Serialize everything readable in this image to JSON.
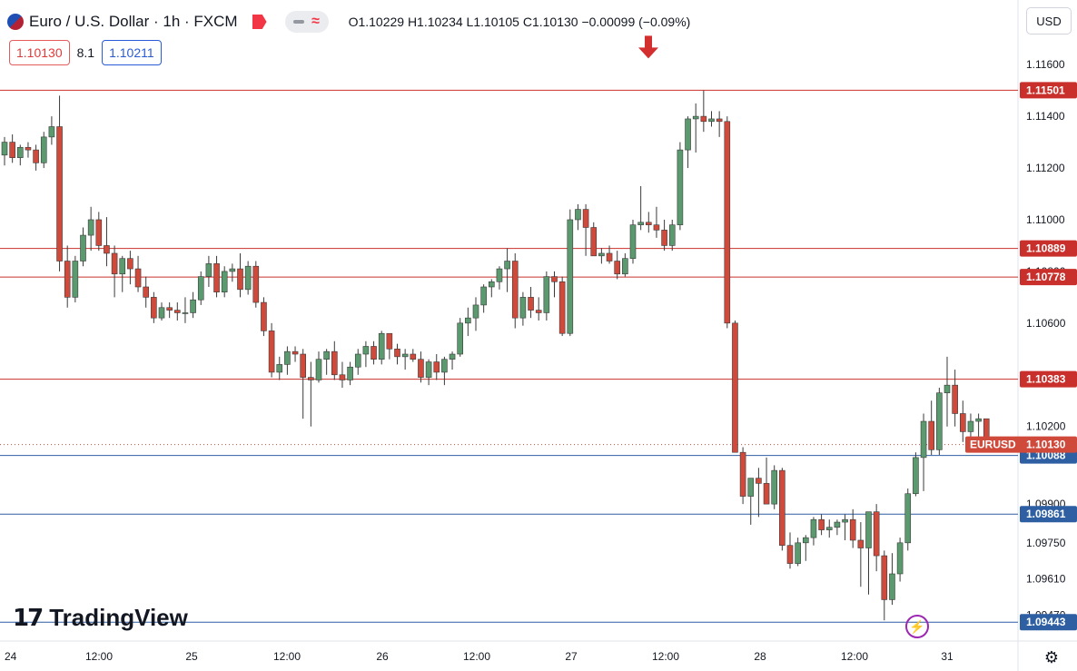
{
  "header": {
    "title": "Euro / U.S. Dollar · 1h · FXCM",
    "ohlc": "O1.10229 H1.10234 L1.10105 C1.10130 −0.00099 (−0.09%)"
  },
  "quote": {
    "sell": "1.10130",
    "spread": "8.1",
    "buy": "1.10211"
  },
  "currency": "USD",
  "logo": "TradingView",
  "colors": {
    "up": "#5b9a6f",
    "down": "#d04a3c",
    "red_line": "#c9302c",
    "blue_line": "#2e5fa3",
    "arrow": "#d32f2f"
  },
  "chart_data": {
    "type": "candlestick",
    "symbol": "EURUSD",
    "x_ticks": [
      "24",
      "12:00",
      "25",
      "12:00",
      "26",
      "12:00",
      "27",
      "12:00",
      "28",
      "12:00",
      "31"
    ],
    "y_ticks": [
      "1.11600",
      "1.11400",
      "1.11200",
      "1.11000",
      "1.10800",
      "1.10600",
      "1.10200",
      "1.09900",
      "1.09750",
      "1.09610",
      "1.09470"
    ],
    "ylim": [
      1.0937,
      1.1185
    ],
    "last_price": {
      "label": "EURUSD",
      "value": "1.10130"
    },
    "horizontal_lines": [
      {
        "value": "1.11501",
        "style": "red"
      },
      {
        "value": "1.10889",
        "style": "red"
      },
      {
        "value": "1.10778",
        "style": "red"
      },
      {
        "value": "1.10383",
        "style": "red"
      },
      {
        "value": "1.10088",
        "style": "blue"
      },
      {
        "value": "1.09861",
        "style": "blue"
      },
      {
        "value": "1.09443",
        "style": "blue"
      }
    ],
    "arrow_marker": {
      "direction": "down",
      "near_value": 1.1155
    },
    "candles": [
      {
        "o": 1.1125,
        "h": 1.1132,
        "l": 1.1121,
        "c": 1.113
      },
      {
        "o": 1.113,
        "h": 1.1133,
        "l": 1.1122,
        "c": 1.1124
      },
      {
        "o": 1.1124,
        "h": 1.1129,
        "l": 1.1121,
        "c": 1.1128
      },
      {
        "o": 1.1128,
        "h": 1.113,
        "l": 1.1124,
        "c": 1.1127
      },
      {
        "o": 1.1127,
        "h": 1.1129,
        "l": 1.1119,
        "c": 1.1122
      },
      {
        "o": 1.1122,
        "h": 1.1134,
        "l": 1.112,
        "c": 1.1132
      },
      {
        "o": 1.1132,
        "h": 1.114,
        "l": 1.1129,
        "c": 1.1136
      },
      {
        "o": 1.1136,
        "h": 1.1148,
        "l": 1.108,
        "c": 1.1084
      },
      {
        "o": 1.1084,
        "h": 1.109,
        "l": 1.1066,
        "c": 1.107
      },
      {
        "o": 1.107,
        "h": 1.1086,
        "l": 1.1068,
        "c": 1.1084
      },
      {
        "o": 1.1084,
        "h": 1.1097,
        "l": 1.1082,
        "c": 1.1094
      },
      {
        "o": 1.1094,
        "h": 1.1105,
        "l": 1.1088,
        "c": 1.11
      },
      {
        "o": 1.11,
        "h": 1.1103,
        "l": 1.1088,
        "c": 1.109
      },
      {
        "o": 1.109,
        "h": 1.1101,
        "l": 1.1082,
        "c": 1.1087
      },
      {
        "o": 1.1087,
        "h": 1.109,
        "l": 1.107,
        "c": 1.1079
      },
      {
        "o": 1.1079,
        "h": 1.1086,
        "l": 1.1072,
        "c": 1.1085
      },
      {
        "o": 1.1085,
        "h": 1.1088,
        "l": 1.1075,
        "c": 1.1081
      },
      {
        "o": 1.1081,
        "h": 1.1086,
        "l": 1.1072,
        "c": 1.1074
      },
      {
        "o": 1.1074,
        "h": 1.1078,
        "l": 1.1066,
        "c": 1.107
      },
      {
        "o": 1.107,
        "h": 1.1072,
        "l": 1.106,
        "c": 1.1062
      },
      {
        "o": 1.1062,
        "h": 1.1068,
        "l": 1.1061,
        "c": 1.1066
      },
      {
        "o": 1.1066,
        "h": 1.1068,
        "l": 1.1062,
        "c": 1.1065
      },
      {
        "o": 1.1065,
        "h": 1.1068,
        "l": 1.1061,
        "c": 1.1064
      },
      {
        "o": 1.1064,
        "h": 1.107,
        "l": 1.106,
        "c": 1.1064
      },
      {
        "o": 1.1064,
        "h": 1.1072,
        "l": 1.1062,
        "c": 1.1069
      },
      {
        "o": 1.1069,
        "h": 1.108,
        "l": 1.1067,
        "c": 1.1078
      },
      {
        "o": 1.1078,
        "h": 1.1086,
        "l": 1.1074,
        "c": 1.1083
      },
      {
        "o": 1.1083,
        "h": 1.1086,
        "l": 1.107,
        "c": 1.1072
      },
      {
        "o": 1.1072,
        "h": 1.1082,
        "l": 1.107,
        "c": 1.108
      },
      {
        "o": 1.108,
        "h": 1.1083,
        "l": 1.1076,
        "c": 1.1081
      },
      {
        "o": 1.1081,
        "h": 1.1087,
        "l": 1.107,
        "c": 1.1073
      },
      {
        "o": 1.1073,
        "h": 1.1084,
        "l": 1.1071,
        "c": 1.1082
      },
      {
        "o": 1.1082,
        "h": 1.1084,
        "l": 1.1066,
        "c": 1.1068
      },
      {
        "o": 1.1068,
        "h": 1.107,
        "l": 1.1055,
        "c": 1.1057
      },
      {
        "o": 1.1057,
        "h": 1.106,
        "l": 1.1039,
        "c": 1.1041
      },
      {
        "o": 1.1041,
        "h": 1.1047,
        "l": 1.1038,
        "c": 1.1044
      },
      {
        "o": 1.1044,
        "h": 1.1051,
        "l": 1.104,
        "c": 1.1049
      },
      {
        "o": 1.1049,
        "h": 1.1051,
        "l": 1.1045,
        "c": 1.1048
      },
      {
        "o": 1.1048,
        "h": 1.105,
        "l": 1.1023,
        "c": 1.1039
      },
      {
        "o": 1.1039,
        "h": 1.1045,
        "l": 1.102,
        "c": 1.1038
      },
      {
        "o": 1.1038,
        "h": 1.1049,
        "l": 1.1037,
        "c": 1.1046
      },
      {
        "o": 1.1046,
        "h": 1.105,
        "l": 1.104,
        "c": 1.1049
      },
      {
        "o": 1.1049,
        "h": 1.1053,
        "l": 1.1038,
        "c": 1.104
      },
      {
        "o": 1.104,
        "h": 1.1045,
        "l": 1.1035,
        "c": 1.1038
      },
      {
        "o": 1.1038,
        "h": 1.1045,
        "l": 1.1036,
        "c": 1.1043
      },
      {
        "o": 1.1043,
        "h": 1.105,
        "l": 1.104,
        "c": 1.1048
      },
      {
        "o": 1.1048,
        "h": 1.1053,
        "l": 1.1043,
        "c": 1.1051
      },
      {
        "o": 1.1051,
        "h": 1.1053,
        "l": 1.1044,
        "c": 1.1046
      },
      {
        "o": 1.1046,
        "h": 1.1057,
        "l": 1.1044,
        "c": 1.1056
      },
      {
        "o": 1.1056,
        "h": 1.1056,
        "l": 1.1046,
        "c": 1.105
      },
      {
        "o": 1.105,
        "h": 1.1052,
        "l": 1.1044,
        "c": 1.1047
      },
      {
        "o": 1.1047,
        "h": 1.105,
        "l": 1.1042,
        "c": 1.1048
      },
      {
        "o": 1.1048,
        "h": 1.105,
        "l": 1.1045,
        "c": 1.1046
      },
      {
        "o": 1.1046,
        "h": 1.1049,
        "l": 1.1037,
        "c": 1.1039
      },
      {
        "o": 1.1039,
        "h": 1.1046,
        "l": 1.1036,
        "c": 1.1045
      },
      {
        "o": 1.1045,
        "h": 1.1048,
        "l": 1.1038,
        "c": 1.1041
      },
      {
        "o": 1.1041,
        "h": 1.1047,
        "l": 1.1036,
        "c": 1.1046
      },
      {
        "o": 1.1046,
        "h": 1.1049,
        "l": 1.1042,
        "c": 1.1048
      },
      {
        "o": 1.1048,
        "h": 1.1062,
        "l": 1.1047,
        "c": 1.106
      },
      {
        "o": 1.106,
        "h": 1.1066,
        "l": 1.1055,
        "c": 1.1062
      },
      {
        "o": 1.1062,
        "h": 1.107,
        "l": 1.1057,
        "c": 1.1067
      },
      {
        "o": 1.1067,
        "h": 1.1075,
        "l": 1.1064,
        "c": 1.1074
      },
      {
        "o": 1.1074,
        "h": 1.1077,
        "l": 1.107,
        "c": 1.1076
      },
      {
        "o": 1.1076,
        "h": 1.1082,
        "l": 1.1073,
        "c": 1.1081
      },
      {
        "o": 1.1081,
        "h": 1.1089,
        "l": 1.1072,
        "c": 1.1084
      },
      {
        "o": 1.1084,
        "h": 1.1087,
        "l": 1.1058,
        "c": 1.1062
      },
      {
        "o": 1.1062,
        "h": 1.1072,
        "l": 1.1059,
        "c": 1.107
      },
      {
        "o": 1.107,
        "h": 1.1074,
        "l": 1.1062,
        "c": 1.1065
      },
      {
        "o": 1.1065,
        "h": 1.107,
        "l": 1.1061,
        "c": 1.1064
      },
      {
        "o": 1.1064,
        "h": 1.108,
        "l": 1.1061,
        "c": 1.1078
      },
      {
        "o": 1.1078,
        "h": 1.108,
        "l": 1.107,
        "c": 1.1076
      },
      {
        "o": 1.1076,
        "h": 1.1078,
        "l": 1.1055,
        "c": 1.1056
      },
      {
        "o": 1.1056,
        "h": 1.1104,
        "l": 1.1055,
        "c": 1.11
      },
      {
        "o": 1.11,
        "h": 1.1106,
        "l": 1.1096,
        "c": 1.1104
      },
      {
        "o": 1.1104,
        "h": 1.1106,
        "l": 1.1086,
        "c": 1.1097
      },
      {
        "o": 1.1097,
        "h": 1.1099,
        "l": 1.1086,
        "c": 1.1086
      },
      {
        "o": 1.1086,
        "h": 1.1089,
        "l": 1.1083,
        "c": 1.1087
      },
      {
        "o": 1.1087,
        "h": 1.109,
        "l": 1.1083,
        "c": 1.1084
      },
      {
        "o": 1.1084,
        "h": 1.1088,
        "l": 1.1077,
        "c": 1.1079
      },
      {
        "o": 1.1079,
        "h": 1.1087,
        "l": 1.1078,
        "c": 1.1085
      },
      {
        "o": 1.1085,
        "h": 1.11,
        "l": 1.1083,
        "c": 1.1098
      },
      {
        "o": 1.1098,
        "h": 1.1113,
        "l": 1.1096,
        "c": 1.1099
      },
      {
        "o": 1.1099,
        "h": 1.1103,
        "l": 1.1095,
        "c": 1.1098
      },
      {
        "o": 1.1098,
        "h": 1.1105,
        "l": 1.1093,
        "c": 1.1096
      },
      {
        "o": 1.1096,
        "h": 1.11,
        "l": 1.1088,
        "c": 1.109
      },
      {
        "o": 1.109,
        "h": 1.11,
        "l": 1.1088,
        "c": 1.1098
      },
      {
        "o": 1.1098,
        "h": 1.113,
        "l": 1.1096,
        "c": 1.1127
      },
      {
        "o": 1.1127,
        "h": 1.114,
        "l": 1.112,
        "c": 1.1139
      },
      {
        "o": 1.1139,
        "h": 1.1145,
        "l": 1.1126,
        "c": 1.114
      },
      {
        "o": 1.114,
        "h": 1.115,
        "l": 1.1134,
        "c": 1.1138
      },
      {
        "o": 1.1138,
        "h": 1.1142,
        "l": 1.1136,
        "c": 1.1139
      },
      {
        "o": 1.1139,
        "h": 1.1142,
        "l": 1.1132,
        "c": 1.1138
      },
      {
        "o": 1.1138,
        "h": 1.114,
        "l": 1.1058,
        "c": 1.106
      },
      {
        "o": 1.106,
        "h": 1.1061,
        "l": 1.101,
        "c": 1.101
      },
      {
        "o": 1.101,
        "h": 1.1012,
        "l": 1.099,
        "c": 1.0993
      },
      {
        "o": 1.0993,
        "h": 1.0999,
        "l": 1.0982,
        "c": 1.1
      },
      {
        "o": 1.1,
        "h": 1.1004,
        "l": 1.0985,
        "c": 1.0998
      },
      {
        "o": 1.0998,
        "h": 1.1008,
        "l": 1.099,
        "c": 1.099
      },
      {
        "o": 1.099,
        "h": 1.1005,
        "l": 1.0988,
        "c": 1.1003
      },
      {
        "o": 1.1003,
        "h": 1.1004,
        "l": 1.0972,
        "c": 1.0974
      },
      {
        "o": 1.0974,
        "h": 1.0979,
        "l": 1.0965,
        "c": 1.0967
      },
      {
        "o": 1.0967,
        "h": 1.0977,
        "l": 1.0966,
        "c": 1.0975
      },
      {
        "o": 1.0975,
        "h": 1.0978,
        "l": 1.0968,
        "c": 1.0977
      },
      {
        "o": 1.0977,
        "h": 1.0985,
        "l": 1.0974,
        "c": 1.0984
      },
      {
        "o": 1.0984,
        "h": 1.0986,
        "l": 1.0978,
        "c": 1.098
      },
      {
        "o": 1.098,
        "h": 1.0984,
        "l": 1.0977,
        "c": 1.0981
      },
      {
        "o": 1.0981,
        "h": 1.0984,
        "l": 1.0978,
        "c": 1.0983
      },
      {
        "o": 1.0983,
        "h": 1.0986,
        "l": 1.0976,
        "c": 1.0984
      },
      {
        "o": 1.0984,
        "h": 1.0988,
        "l": 1.0973,
        "c": 1.0976
      },
      {
        "o": 1.0976,
        "h": 1.0983,
        "l": 1.0958,
        "c": 1.0973
      },
      {
        "o": 1.0973,
        "h": 1.0987,
        "l": 1.0955,
        "c": 1.0987
      },
      {
        "o": 1.0987,
        "h": 1.099,
        "l": 1.0964,
        "c": 1.097
      },
      {
        "o": 1.097,
        "h": 1.0972,
        "l": 1.0945,
        "c": 1.0953
      },
      {
        "o": 1.0953,
        "h": 1.0971,
        "l": 1.0951,
        "c": 1.0963
      },
      {
        "o": 1.0963,
        "h": 1.0977,
        "l": 1.096,
        "c": 1.0975
      },
      {
        "o": 1.0975,
        "h": 1.0996,
        "l": 1.0972,
        "c": 1.0994
      },
      {
        "o": 1.0994,
        "h": 1.101,
        "l": 1.0993,
        "c": 1.1008
      },
      {
        "o": 1.1008,
        "h": 1.1025,
        "l": 1.0995,
        "c": 1.1022
      },
      {
        "o": 1.1022,
        "h": 1.103,
        "l": 1.1009,
        "c": 1.1011
      },
      {
        "o": 1.1011,
        "h": 1.1035,
        "l": 1.1009,
        "c": 1.1033
      },
      {
        "o": 1.1033,
        "h": 1.1047,
        "l": 1.102,
        "c": 1.1036
      },
      {
        "o": 1.1036,
        "h": 1.1042,
        "l": 1.102,
        "c": 1.1025
      },
      {
        "o": 1.1025,
        "h": 1.103,
        "l": 1.1014,
        "c": 1.1018
      },
      {
        "o": 1.1018,
        "h": 1.1025,
        "l": 1.1015,
        "c": 1.1022
      },
      {
        "o": 1.1022,
        "h": 1.1025,
        "l": 1.1014,
        "c": 1.1023
      },
      {
        "o": 1.1023,
        "h": 1.1023,
        "l": 1.101,
        "c": 1.1013
      }
    ]
  }
}
